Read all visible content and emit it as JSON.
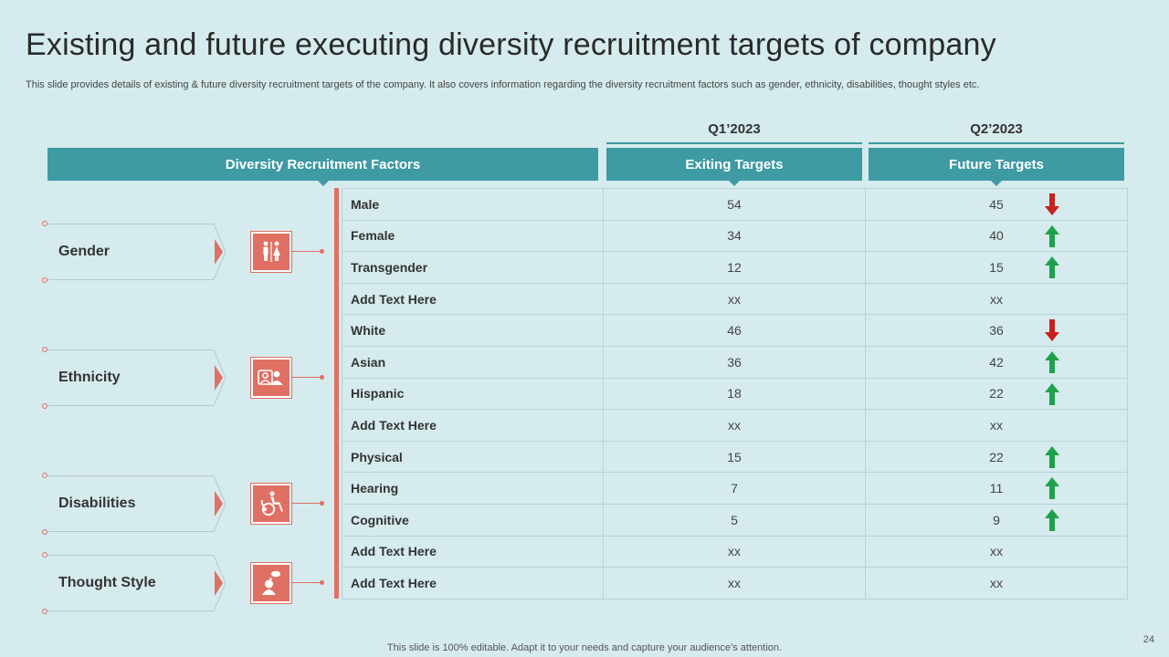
{
  "title": "Existing and future executing diversity recruitment targets of company",
  "subtitle": "This slide provides details of existing & future diversity recruitment targets of the company. It also covers information regarding the diversity recruitment factors such as gender, ethnicity, disabilities, thought styles etc.",
  "quarters": {
    "q1": "Q1’2023",
    "q2": "Q2’2023"
  },
  "headers": {
    "factors": "Diversity  Recruitment Factors",
    "existing": "Exiting Targets",
    "future": "Future Targets"
  },
  "categories": [
    {
      "name": "Gender",
      "icon": "restroom-icon"
    },
    {
      "name": "Ethnicity",
      "icon": "people-icon"
    },
    {
      "name": "Disabilities",
      "icon": "wheelchair-icon"
    },
    {
      "name": "Thought Style",
      "icon": "thinking-head-icon"
    }
  ],
  "rows": [
    {
      "label": "Male",
      "existing": "54",
      "future": "45",
      "trend": "down"
    },
    {
      "label": "Female",
      "existing": "34",
      "future": "40",
      "trend": "up"
    },
    {
      "label": "Transgender",
      "existing": "12",
      "future": "15",
      "trend": "up"
    },
    {
      "label": "Add  Text Here",
      "existing": "xx",
      "future": "xx",
      "trend": ""
    },
    {
      "label": "White",
      "existing": "46",
      "future": "36",
      "trend": "down"
    },
    {
      "label": "Asian",
      "existing": "36",
      "future": "42",
      "trend": "up"
    },
    {
      "label": "Hispanic",
      "existing": "18",
      "future": "22",
      "trend": "up"
    },
    {
      "label": "Add  Text Here",
      "existing": "xx",
      "future": "xx",
      "trend": ""
    },
    {
      "label": "Physical",
      "existing": "15",
      "future": "22",
      "trend": "up"
    },
    {
      "label": "Hearing",
      "existing": "7",
      "future": "11",
      "trend": "up"
    },
    {
      "label": "Cognitive",
      "existing": "5",
      "future": "9",
      "trend": "up"
    },
    {
      "label": "Add  Text Here",
      "existing": "xx",
      "future": "xx",
      "trend": ""
    },
    {
      "label": "Add  Text Here",
      "existing": "xx",
      "future": "xx",
      "trend": ""
    }
  ],
  "colors": {
    "teal": "#3e9aa3",
    "coral": "#e07063",
    "up": "#1fa14b",
    "down": "#c8211e",
    "background": "#d5ebed"
  },
  "footer": "This slide is 100% editable. Adapt it to your needs and capture your audience’s attention.",
  "page_number": "24"
}
